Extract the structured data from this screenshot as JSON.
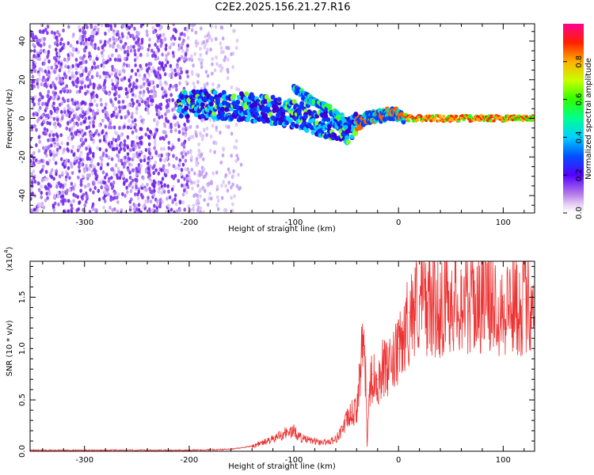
{
  "chart_data": [
    {
      "type": "heatmap",
      "title": "C2E2.2025.156.21.27.R16",
      "xlabel": "Height of straight line (km)",
      "ylabel": "Frequency (Hz)",
      "xlim": [
        -352,
        130
      ],
      "ylim": [
        -49,
        49
      ],
      "xticks": [
        -300,
        -200,
        -100,
        0,
        100
      ],
      "xtick_labels": [
        "-300",
        "-200",
        "-100",
        "0",
        "100"
      ],
      "yticks": [
        -40,
        -20,
        0,
        20,
        40
      ],
      "ytick_labels": [
        "-40",
        "-20",
        "0",
        "20",
        "40"
      ],
      "colorbar": {
        "label": "Normalized spectral amplitude",
        "range": [
          0.0,
          1.0
        ],
        "ticks": [
          0.0,
          0.2,
          0.4,
          0.6,
          0.8
        ],
        "tick_labels": [
          "0.0",
          "0.2",
          "0.4",
          "0.6",
          "0.8"
        ]
      },
      "ridge": {
        "x": [
          -210,
          -180,
          -150,
          -120,
          -100,
          -80,
          -60,
          -50,
          -40,
          -30,
          -20,
          -10,
          0,
          10,
          50,
          100,
          130
        ],
        "y": [
          8,
          7,
          6,
          4,
          2,
          -1,
          -4,
          -6,
          -3,
          0,
          1,
          2,
          2,
          0,
          0,
          0,
          0
        ]
      },
      "upper_branch": {
        "x": [
          -100,
          -85,
          -70,
          -60,
          -50
        ],
        "y": [
          15,
          10,
          6,
          2,
          -3
        ]
      },
      "noise_region_x": [
        -352,
        -150
      ]
    },
    {
      "type": "line",
      "xlabel": "Height of straight line (km)",
      "ylabel": "SNR (10 * v/v)",
      "scale_label": "(x10^4)",
      "xlim": [
        -352,
        130
      ],
      "ylim": [
        0,
        1.85
      ],
      "xticks": [
        -300,
        -200,
        -100,
        0,
        100
      ],
      "xtick_labels": [
        "-300",
        "-200",
        "-100",
        "0",
        "100"
      ],
      "yticks": [
        0.0,
        0.5,
        1.0,
        1.5
      ],
      "ytick_labels": [
        "0.0",
        "0.5",
        "1.0",
        "1.5"
      ],
      "series": [
        {
          "color": "#ee3333",
          "x": [
            -352,
            -300,
            -250,
            -200,
            -160,
            -140,
            -120,
            -110,
            -100,
            -95,
            -90,
            -80,
            -70,
            -60,
            -55,
            -50,
            -45,
            -40,
            -38,
            -35,
            -33,
            -31,
            -30,
            -28,
            -25,
            -20,
            -15,
            -10,
            -5,
            0,
            5,
            10,
            15,
            20,
            25,
            30,
            40,
            50,
            60,
            70,
            80,
            90,
            100,
            110,
            120,
            130
          ],
          "y": [
            0.01,
            0.01,
            0.01,
            0.01,
            0.02,
            0.05,
            0.12,
            0.18,
            0.2,
            0.15,
            0.12,
            0.1,
            0.09,
            0.12,
            0.2,
            0.3,
            0.38,
            0.4,
            0.7,
            0.95,
            1.12,
            0.6,
            0.05,
            0.6,
            0.75,
            0.7,
            0.85,
            0.8,
            0.9,
            1.0,
            1.15,
            1.35,
            1.45,
            1.5,
            1.5,
            1.48,
            1.45,
            1.55,
            1.52,
            1.5,
            1.55,
            1.52,
            1.45,
            1.5,
            1.48,
            1.55
          ]
        }
      ]
    }
  ]
}
